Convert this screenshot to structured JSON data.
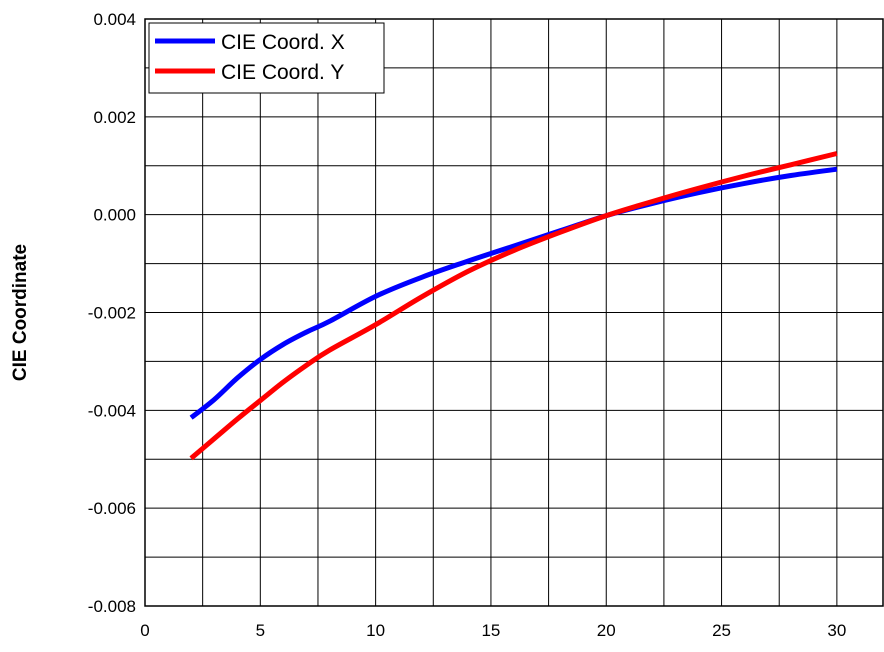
{
  "chart_data": {
    "type": "line",
    "title": "",
    "xlabel": "",
    "ylabel": "CIE Coordinate",
    "xlim": [
      0,
      32
    ],
    "ylim": [
      -0.008,
      0.004
    ],
    "x_ticks": [
      0,
      5,
      10,
      15,
      20,
      25,
      30
    ],
    "x_tick_labels": [
      "0",
      "5",
      "10",
      "15",
      "20",
      "25",
      "30"
    ],
    "y_ticks": [
      -0.008,
      -0.006,
      -0.004,
      -0.002,
      0.0,
      0.002,
      0.004
    ],
    "y_tick_labels": [
      "-0.008",
      "-0.006",
      "-0.004",
      "-0.002",
      "0.000",
      "0.002",
      "0.004"
    ],
    "grid": true,
    "legend": "top-left",
    "series": [
      {
        "name": "CIE Coord. X",
        "color": "#0000ff",
        "x": [
          2,
          3,
          4,
          5,
          6,
          7,
          8,
          10,
          12,
          14,
          16,
          18,
          20,
          22,
          24,
          26,
          28,
          30
        ],
        "y": [
          -0.00415,
          -0.00378,
          -0.00334,
          -0.00296,
          -0.00265,
          -0.0024,
          -0.00218,
          -0.00167,
          -0.00128,
          -0.00095,
          -0.00064,
          -0.00033,
          -2e-05,
          0.00023,
          0.00045,
          0.00064,
          0.0008,
          0.00093
        ]
      },
      {
        "name": "CIE Coord. Y",
        "color": "#ff0000",
        "x": [
          2,
          3,
          4,
          5,
          6,
          7,
          8,
          10,
          12,
          14,
          16,
          18,
          20,
          22,
          24,
          26,
          28,
          30
        ],
        "y": [
          -0.00498,
          -0.00458,
          -0.00418,
          -0.0038,
          -0.00342,
          -0.00308,
          -0.00277,
          -0.00225,
          -0.00168,
          -0.00116,
          -0.00073,
          -0.00036,
          -2e-05,
          0.00027,
          0.00054,
          0.00079,
          0.00102,
          0.00125
        ]
      }
    ]
  }
}
